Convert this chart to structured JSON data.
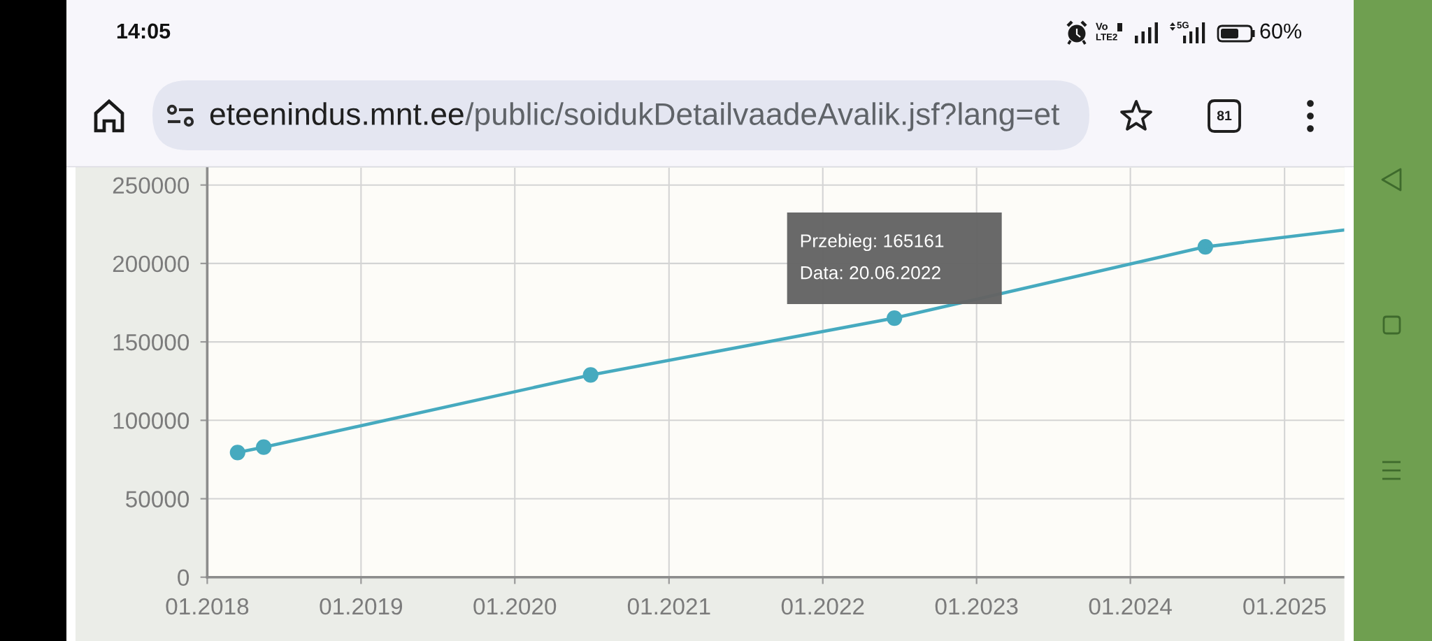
{
  "chart_data": {
    "type": "line",
    "xlim": [
      "2018-01-01",
      "2025-05-23"
    ],
    "xticks": [
      {
        "value": "2018-01-01",
        "label": "01.2018"
      },
      {
        "value": "2019-01-01",
        "label": "01.2019"
      },
      {
        "value": "2020-01-01",
        "label": "01.2020"
      },
      {
        "value": "2021-01-01",
        "label": "01.2021"
      },
      {
        "value": "2022-01-01",
        "label": "01.2022"
      },
      {
        "value": "2023-01-01",
        "label": "01.2023"
      },
      {
        "value": "2024-01-01",
        "label": "01.2024"
      },
      {
        "value": "2025-01-01",
        "label": "01.2025"
      }
    ],
    "ylim": [
      0,
      261000
    ],
    "yticks": [
      0,
      50000,
      100000,
      150000,
      200000,
      250000
    ],
    "grid": true,
    "marker": "circle",
    "line_style": "solid",
    "series": [
      {
        "color": "#46aabf",
        "x": [
          "2018-03-14",
          "2018-05-15",
          "2020-06-29",
          "2022-06-20",
          "2024-06-27"
        ],
        "values": [
          79500,
          82900,
          128900,
          165161,
          210600
        ]
      },
      {
        "color": "#46aabf",
        "marker": "none",
        "x": [
          "2024-06-27",
          "2025-05-23"
        ],
        "values": [
          210600,
          221300
        ]
      }
    ],
    "annotations": [
      {
        "text": "Przebieg: 165161\nData: 20.06.2022",
        "x": "2022-06-20",
        "y": 165161
      },
      "14:05",
      "Vo",
      "LTE2",
      "5G",
      "60%",
      "eteenindus.mnt.ee/public/soidukDetailvaadeAvalik.jsf?lang=et",
      "81"
    ]
  }
}
